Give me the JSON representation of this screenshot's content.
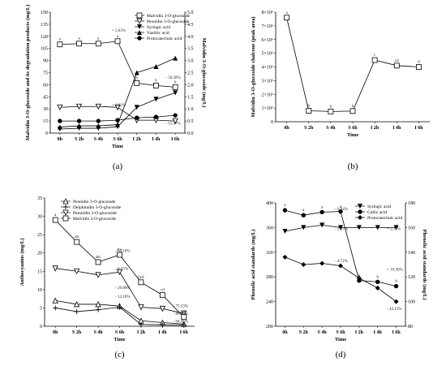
{
  "chart_data": [
    {
      "id": "a",
      "panel_label": "(a)",
      "type": "line",
      "xlabel": "Time",
      "categories": [
        "0h",
        "S 2h",
        "S 4h",
        "S 6h",
        "I 2h",
        "I 4h",
        "I 6h"
      ],
      "ylabel": "Malvidin 3-O-glucoside and its degradation products (mg/L)",
      "ylim": [
        0,
        150
      ],
      "yticks": [
        0,
        15,
        30,
        45,
        60,
        75,
        90,
        105,
        120,
        135,
        150
      ],
      "ylabel2": "Malvidin 3-O-glucoside (mg/L)",
      "ylim2": [
        0,
        5
      ],
      "yticks2": [
        "0.0",
        "0.5",
        "1.0",
        "1.5",
        "2.0",
        "2.5",
        "3.0",
        "3.5",
        "4.0",
        "4.5",
        "5.0"
      ],
      "legend_position": "top-right",
      "series": [
        {
          "name": "Malvidin 3-O-glucoside",
          "marker": "square-open",
          "axis": "left",
          "values": [
            110,
            111,
            111,
            114,
            62,
            59,
            57
          ]
        },
        {
          "name": "Peonidin 3-O-glucoside",
          "marker": "triangle-down-open",
          "axis": "left",
          "values": [
            32,
            33,
            33,
            32,
            16,
            16,
            15
          ]
        },
        {
          "name": "Syringic acid",
          "marker": "triangle-down-filled",
          "axis": "left",
          "values": [
            5,
            6,
            6,
            8,
            32,
            42,
            50
          ]
        },
        {
          "name": "Vanillic acid",
          "marker": "triangle-up-filled",
          "axis": "right",
          "values": [
            0.25,
            0.3,
            0.3,
            0.35,
            2.5,
            2.75,
            3.1
          ]
        },
        {
          "name": "Protocatechuic acid",
          "marker": "circle-filled",
          "axis": "left",
          "values": [
            15,
            15,
            15,
            16,
            19,
            20,
            22
          ]
        }
      ],
      "annotations": [
        "+ 3.03%",
        "- 50.58%",
        "+ 3.82%",
        "- 51.47%"
      ],
      "letters": [
        "a",
        "a",
        "a",
        "a",
        "b",
        "b",
        "b"
      ]
    },
    {
      "id": "b",
      "panel_label": "(b)",
      "type": "line",
      "xlabel": "Time",
      "categories": [
        "0h",
        "S 2h",
        "S 4h",
        "S 6h",
        "I 2h",
        "I 4h",
        "I 6h"
      ],
      "ylabel": "Malvidin 3-O-glucoside chalcone (peak area)",
      "ylim": [
        0,
        8000000
      ],
      "yticks": [
        "0",
        "1×10⁶",
        "2×10⁶",
        "3×10⁶",
        "4×10⁶",
        "5×10⁶",
        "6×10⁶",
        "7×10⁶",
        "8×10⁶"
      ],
      "series": [
        {
          "name": "Malvidin 3-O-glucoside chalcone",
          "marker": "square-open",
          "values": [
            7600000,
            800000,
            750000,
            780000,
            4500000,
            4100000,
            4000000
          ]
        }
      ],
      "letters": [
        "a",
        "b",
        "b",
        "b",
        "c",
        "cd",
        "d"
      ]
    },
    {
      "id": "c",
      "panel_label": "(c)",
      "type": "line",
      "xlabel": "Time",
      "categories": [
        "0h",
        "S 2h",
        "S 4h",
        "S 6h",
        "I 2h",
        "I 4h",
        "I 6h"
      ],
      "ylabel": "Anthocyanins (mg/L)",
      "ylim": [
        0,
        35
      ],
      "yticks": [
        0,
        5,
        10,
        15,
        20,
        25,
        30,
        35
      ],
      "legend_position": "top-left",
      "series": [
        {
          "name": "Peonidin 3-O-glucoside",
          "marker": "triangle-up-open",
          "values": [
            7.0,
            6.0,
            6.0,
            5.5,
            1.5,
            1.0,
            0.6
          ]
        },
        {
          "name": "Delphinidin 3-O-glucoside",
          "marker": "plus",
          "values": [
            5.0,
            4.0,
            4.5,
            5.2,
            0.5,
            0.4,
            0.3
          ]
        },
        {
          "name": "Petunidin 3-O-glucoside",
          "marker": "triangle-down-open",
          "values": [
            15.8,
            15.0,
            14.0,
            14.8,
            5.2,
            4.8,
            3.5
          ]
        },
        {
          "name": "Malvidin 3-O-glucoside",
          "marker": "square-open",
          "values": [
            29,
            23,
            17.5,
            19.5,
            12,
            8.5,
            2.5
          ]
        }
      ],
      "annotations": [
        "- 35.10%",
        "- 6.25%",
        "- 20.80%",
        "- 13.10%",
        "- 75.53%",
        "- 86.36%",
        "- 94.45%"
      ],
      "letters": [
        "a",
        "ab",
        "abc",
        "abc",
        "bcd",
        "cd",
        "d"
      ]
    },
    {
      "id": "d",
      "panel_label": "(d)",
      "type": "line",
      "xlabel": "Time",
      "categories": [
        "0h",
        "S 2h",
        "S 4h",
        "S 6h",
        "I 2h",
        "I 4h",
        "I 6h"
      ],
      "ylabel": "Phenolic acid standards (mg/L)",
      "ylim": [
        200,
        400
      ],
      "yticks": [
        200,
        240,
        280,
        320,
        360,
        400
      ],
      "ylabel2": "Phenolic acid standards (mg/L)",
      "ylim2": [
        80,
        180
      ],
      "yticks2": [
        80,
        100,
        120,
        140,
        160,
        180
      ],
      "legend_position": "top-right",
      "series": [
        {
          "name": "Syringic acid",
          "marker": "triangle-down-filled",
          "axis": "right",
          "values": [
            157,
            160,
            162,
            160,
            160,
            160,
            160
          ]
        },
        {
          "name": "Gallic acid",
          "marker": "circle-filled",
          "axis": "left",
          "values": [
            388,
            380,
            385,
            386,
            274,
            272,
            265
          ]
        },
        {
          "name": "Protocatechuic acid",
          "marker": "diamond-filled",
          "axis": "left",
          "values": [
            312,
            300,
            302,
            298,
            278,
            262,
            240
          ]
        }
      ],
      "annotations": [
        "- 0.94%",
        "- 2.47%",
        "+ 2.31%",
        "- 4.72%",
        "+ 10.30%",
        "- 42.15%"
      ],
      "letters": [
        "a",
        "a",
        "a",
        "a",
        "b",
        "b",
        "b"
      ]
    }
  ]
}
